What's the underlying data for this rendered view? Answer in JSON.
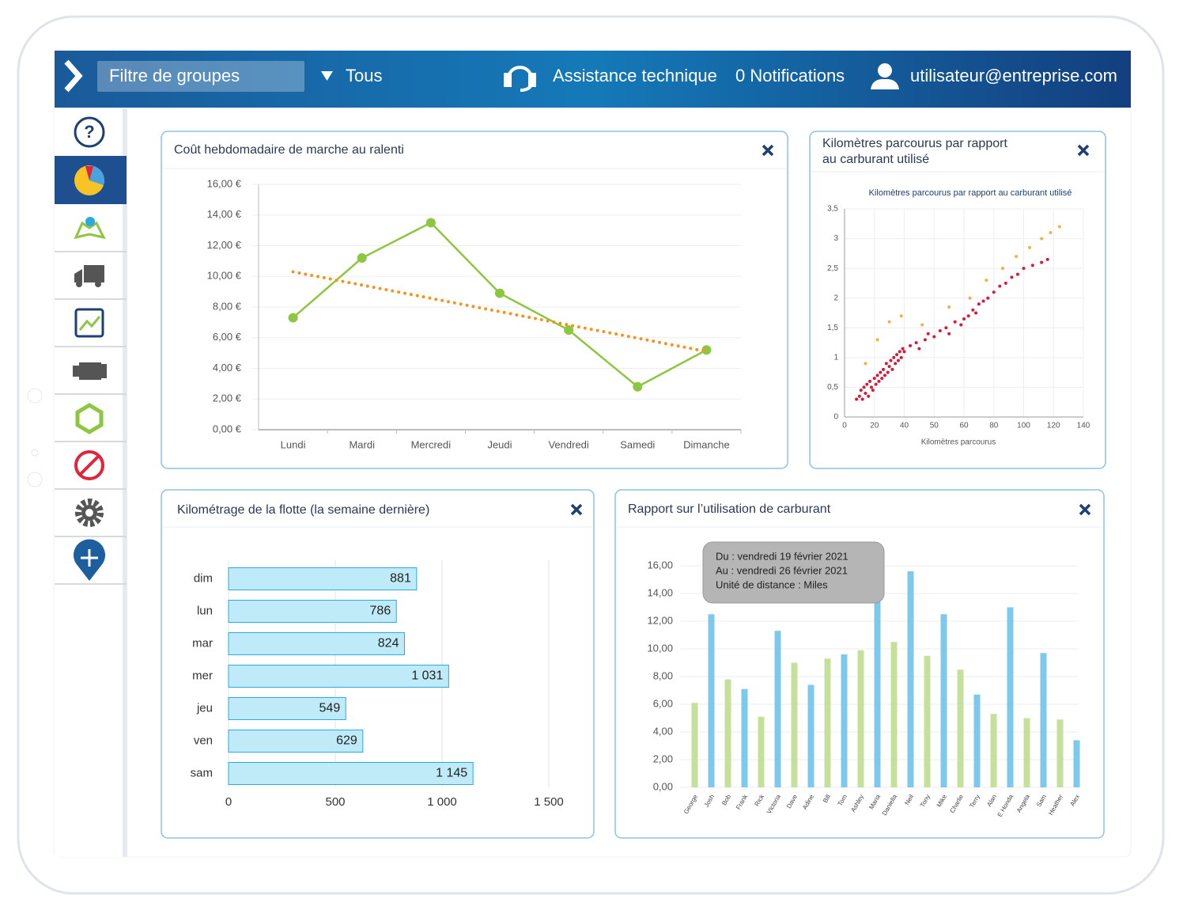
{
  "header": {
    "filter": "Filtre de groupes",
    "dropdown": "Tous",
    "support": "Assistance technique",
    "notifications": "0 Notifications",
    "user": "utilisateur@entreprise.com"
  },
  "chart_data": [
    {
      "type": "line",
      "title": "Coût hebdomadaire de marche au ralenti",
      "categories": [
        "Lundi",
        "Mardi",
        "Mercredi",
        "Jeudi",
        "Vendredi",
        "Samedi",
        "Dimanche"
      ],
      "series": [
        {
          "color": "#8dc63f",
          "values": [
            7.3,
            11.2,
            13.5,
            8.9,
            6.5,
            2.8,
            5.2
          ],
          "markers": true
        },
        {
          "color": "#f7931e",
          "values": [
            10.3,
            9.43,
            8.57,
            7.7,
            6.83,
            5.97,
            5.1
          ],
          "style": "dotted"
        }
      ],
      "ylim": [
        0,
        16
      ],
      "yticks": [
        {
          "value": 0,
          "label": "0,00 €"
        },
        {
          "value": 2,
          "label": "2,00 €"
        },
        {
          "value": 4,
          "label": "4,00 €"
        },
        {
          "value": 6,
          "label": "6,00 €"
        },
        {
          "value": 8,
          "label": "8,00 €"
        },
        {
          "value": 10,
          "label": "10,00 €"
        },
        {
          "value": 12,
          "label": "12,00 €"
        },
        {
          "value": 14,
          "label": "14,00 €"
        },
        {
          "value": 16,
          "label": "16,00 €"
        }
      ],
      "grid": true
    },
    {
      "type": "scatter",
      "title": [
        "Kilomètres parcourus par rapport",
        "au carburant utilisé"
      ],
      "plot_title": "Kilomètres parcourus par rapport au carburant utilisé",
      "xlabel": "Kilomètres parcourus",
      "series": [
        {
          "color": "#d7193a",
          "x": [
            8,
            10,
            11,
            12,
            13,
            14,
            15,
            16,
            17,
            18,
            19,
            20,
            21,
            22,
            23,
            24,
            25,
            26,
            27,
            28,
            29,
            30,
            31,
            32,
            33,
            34,
            35,
            36,
            37,
            38,
            39,
            40,
            42,
            44,
            45,
            47,
            48,
            50,
            52,
            54,
            55,
            57,
            59,
            60,
            63,
            66,
            68,
            70,
            73,
            76,
            80,
            84,
            88,
            92,
            96,
            100,
            106,
            112,
            116
          ],
          "values": [
            0.3,
            0.35,
            0.45,
            0.3,
            0.5,
            0.4,
            0.55,
            0.35,
            0.6,
            0.5,
            0.45,
            0.65,
            0.55,
            0.7,
            0.6,
            0.75,
            0.65,
            0.8,
            0.7,
            0.9,
            0.75,
            0.85,
            0.95,
            0.8,
            1.0,
            0.9,
            1.05,
            0.95,
            1.1,
            1.0,
            1.15,
            1.1,
            1.2,
            1.25,
            1.15,
            1.3,
            1.4,
            1.35,
            1.45,
            1.5,
            1.4,
            1.6,
            1.55,
            1.65,
            1.7,
            1.8,
            1.75,
            1.9,
            1.95,
            2.0,
            2.1,
            2.2,
            2.25,
            2.35,
            2.4,
            2.5,
            2.55,
            2.6,
            2.65
          ]
        },
        {
          "color": "#f5b041",
          "x": [
            14,
            22,
            30,
            38,
            46,
            55,
            64,
            75,
            86,
            95,
            104,
            112,
            118,
            124
          ],
          "values": [
            0.9,
            1.3,
            1.6,
            1.7,
            1.55,
            1.85,
            2.0,
            2.3,
            2.5,
            2.7,
            2.85,
            3.0,
            3.1,
            3.2
          ]
        }
      ],
      "xlim": [
        0,
        140
      ],
      "xticks": [
        0,
        20,
        40,
        50,
        60,
        80,
        100,
        120,
        140
      ],
      "ylim": [
        0,
        3.5
      ],
      "yticks": [
        0,
        {
          "value": 0.5,
          "label": "0,5"
        },
        1,
        {
          "value": 1.5,
          "label": "1,5"
        },
        2,
        {
          "value": 2.5,
          "label": "2,5"
        },
        3,
        {
          "value": 3.5,
          "label": "3,5"
        }
      ],
      "grid": true
    },
    {
      "type": "barh",
      "title": "Kilométrage de la flotte (la semaine dernière)",
      "categories": [
        "dim",
        "lun",
        "mar",
        "mer",
        "jeu",
        "ven",
        "sam"
      ],
      "values": [
        881,
        786,
        824,
        1031,
        549,
        629,
        1145
      ],
      "value_labels": [
        "881",
        "786",
        "824",
        "1 031",
        "549",
        "629",
        "1 145"
      ],
      "color": "#bfeaf8",
      "edge_color": "#29abe2",
      "xlim": [
        0,
        1500
      ],
      "xticks": [
        0,
        500,
        {
          "value": 1000,
          "label": "1 000"
        },
        {
          "value": 1500,
          "label": "1 500"
        }
      ],
      "grid": true
    },
    {
      "type": "bar",
      "title": "Rapport sur l’utilisation de carburant",
      "categories": [
        "George",
        "Josh",
        "Bob",
        "Frank",
        "Rick",
        "Victoria",
        "Dave",
        "Adine",
        "Bill",
        "Tom",
        "Ashley",
        "Maria",
        "Daniella",
        "Neil",
        "Tony",
        "Mike",
        "Charlie",
        "Terry",
        "Alan",
        "E Honda",
        "Angela",
        "Sam",
        "Heather",
        "Alex"
      ],
      "values": [
        6.1,
        12.5,
        7.8,
        7.1,
        5.1,
        11.3,
        9.0,
        7.4,
        9.3,
        9.6,
        9.9,
        14.0,
        10.5,
        15.6,
        9.5,
        12.5,
        8.5,
        6.7,
        5.3,
        13.0,
        5.0,
        9.7,
        4.9,
        3.4
      ],
      "colors": [
        "#c5e09a",
        "#7ec8ec",
        "#c5e09a",
        "#7ec8ec",
        "#c5e09a",
        "#7ec8ec",
        "#c5e09a",
        "#7ec8ec",
        "#c5e09a",
        "#7ec8ec",
        "#c5e09a",
        "#7ec8ec",
        "#c5e09a",
        "#7ec8ec",
        "#c5e09a",
        "#7ec8ec",
        "#c5e09a",
        "#7ec8ec",
        "#c5e09a",
        "#7ec8ec",
        "#c5e09a",
        "#7ec8ec",
        "#c5e09a",
        "#7ec8ec"
      ],
      "ylim": [
        0,
        16
      ],
      "yticks": [
        {
          "value": 0,
          "label": "0,00"
        },
        {
          "value": 2,
          "label": "2,00"
        },
        {
          "value": 4,
          "label": "4,00"
        },
        {
          "value": 6,
          "label": "6,00"
        },
        {
          "value": 8,
          "label": "8,00"
        },
        {
          "value": 10,
          "label": "10,00"
        },
        {
          "value": 12,
          "label": "12,00"
        },
        {
          "value": 14,
          "label": "14,00"
        },
        {
          "value": 16,
          "label": "16,00"
        }
      ],
      "grid": true,
      "annotation": [
        "Du : vendredi 19 février 2021",
        "Au : vendredi 26 février 2021",
        "Unité de distance : Miles"
      ]
    }
  ]
}
